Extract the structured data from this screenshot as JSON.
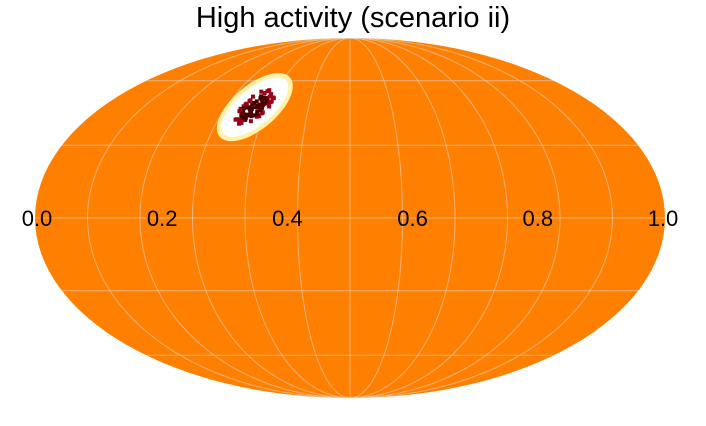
{
  "chart_data": {
    "type": "heatmap",
    "projection": "mollweide",
    "title": "High activity (scenario ii)",
    "colorbar_ticks": [
      "0.0",
      "0.2",
      "0.4",
      "0.6",
      "0.8",
      "1.0"
    ],
    "background_value": 0.7,
    "colors": {
      "background": "#ff8000",
      "grid": "#d9d9d9",
      "hot_inner": "#ffffff",
      "hot_rim": "#fff2a8",
      "hot_core": "#4a0000",
      "hot_core_edge": "#9c0018"
    },
    "hotspot": {
      "longitude_deg": -69,
      "latitude_deg": 47,
      "core_points": 90
    },
    "graticule": {
      "meridians_deg": [
        -150,
        -120,
        -90,
        -60,
        -30,
        0,
        30,
        60,
        90,
        120,
        150,
        180
      ],
      "parallels_deg": [
        -60,
        -30,
        0,
        30,
        60
      ]
    },
    "grid": true
  }
}
